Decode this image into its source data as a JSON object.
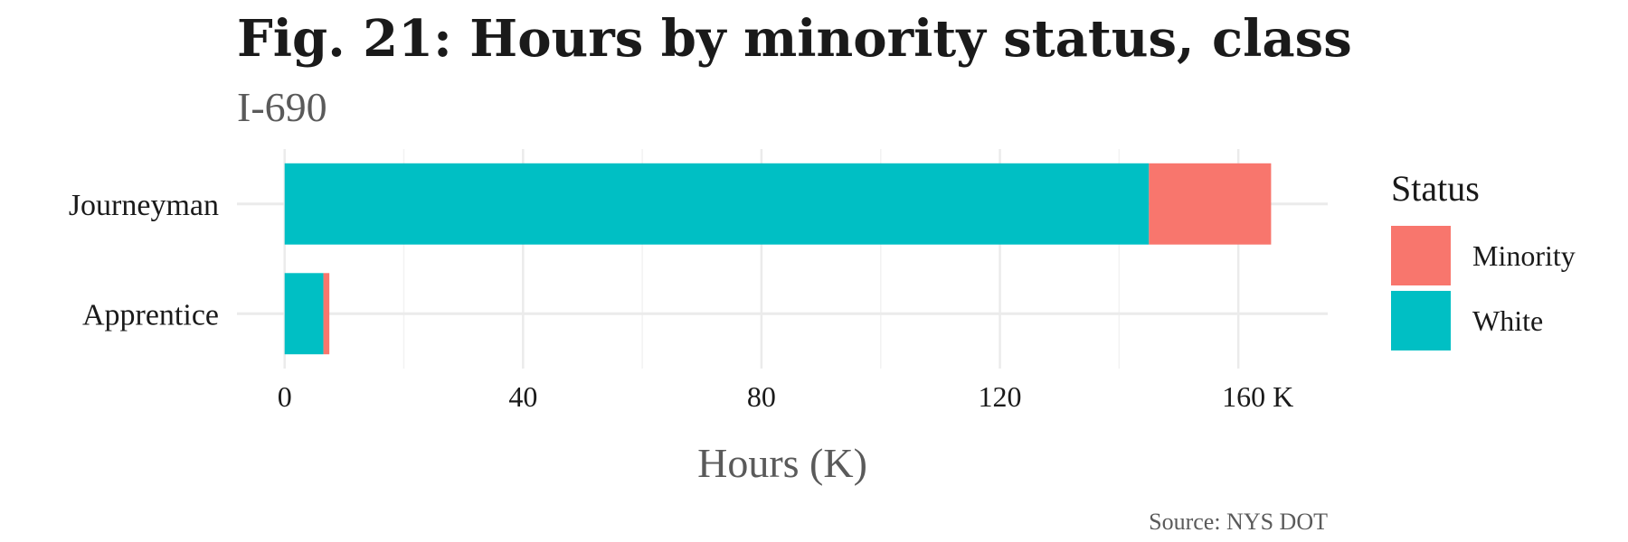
{
  "chart_data": {
    "type": "bar",
    "orientation": "horizontal",
    "stacked": true,
    "title": "Fig. 21: Hours by minority status, class",
    "subtitle": "I-690",
    "xlabel": "Hours (K)",
    "ylabel": "",
    "caption": "Source: NYS DOT",
    "categories": [
      "Journeyman",
      "Apprentice"
    ],
    "series": [
      {
        "name": "White",
        "values": [
          145,
          6.5
        ],
        "color": "#00BFC4"
      },
      {
        "name": "Minority",
        "values": [
          20.5,
          1
        ],
        "color": "#F8766D"
      }
    ],
    "xlim": [
      -8,
      175
    ],
    "xticks": [
      0,
      40,
      80,
      120,
      160
    ],
    "xtick_labels": [
      "0",
      "40",
      "80",
      "120",
      "160 K"
    ],
    "legend": {
      "title": "Status",
      "placement": "right",
      "entries": [
        {
          "label": "Minority",
          "color": "#F8766D"
        },
        {
          "label": "White",
          "color": "#00BFC4"
        }
      ]
    },
    "grid": true
  }
}
